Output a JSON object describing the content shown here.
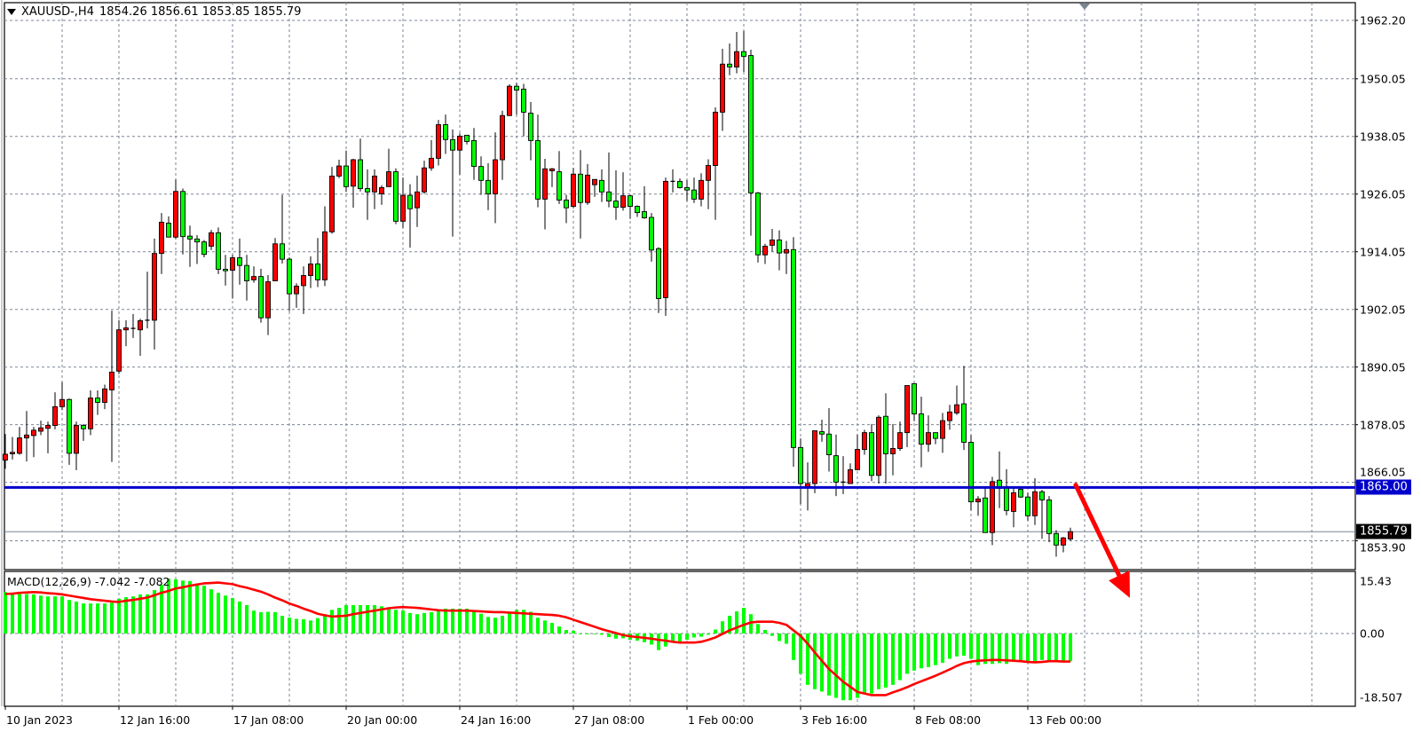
{
  "header": {
    "symbol": "XAUUSD-,H4",
    "ohlc": "1854.26 1856.61 1853.85 1855.79"
  },
  "macd_label": "MACD(12,26,9) -7.042 -7.082",
  "colors": {
    "bull": "#ff0000",
    "bear": "#00ff00",
    "wick": "#000000",
    "grid": "#7b8694",
    "hline": "#0000cc",
    "histogram": "#00ff00",
    "signal": "#ff0000",
    "arrow": "#ff0000",
    "current_price": "#000000"
  },
  "chart_data": [
    {
      "type": "candlestick",
      "symbol": "XAUUSD-",
      "timeframe": "H4",
      "ylim": [
        1847.5,
        1966.8
      ],
      "grid": true,
      "y_ticks": [
        "1962.20",
        "1950.05",
        "1938.05",
        "1926.05",
        "1914.05",
        "1902.05",
        "1890.05",
        "1878.05",
        "1866.05",
        "1853.90"
      ],
      "x_ticks": [
        "10 Jan 2023",
        "12 Jan 16:00",
        "17 Jan 08:00",
        "20 Jan 00:00",
        "24 Jan 16:00",
        "27 Jan 08:00",
        "1 Feb 00:00",
        "3 Feb 16:00",
        "8 Feb 08:00",
        "13 Feb 00:00"
      ],
      "x_tick_every_bars": 16,
      "horizontal_line": {
        "price": 1865.0,
        "label": "1865.00"
      },
      "current_price": {
        "price": 1855.79,
        "label": "1855.79"
      },
      "annotation": {
        "type": "arrow",
        "direction": "down",
        "from_price": 1865.5,
        "to_price": 1842
      },
      "ohlc": [
        [
          1870.7,
          1876.1,
          1868.9,
          1871.9
        ],
        [
          1872.0,
          1875.5,
          1870.8,
          1872.3
        ],
        [
          1872.1,
          1877.6,
          1871.8,
          1875.3
        ],
        [
          1875.3,
          1880.9,
          1870.4,
          1875.9
        ],
        [
          1875.8,
          1877.6,
          1871.3,
          1876.9
        ],
        [
          1876.7,
          1878.9,
          1875.9,
          1877.4
        ],
        [
          1877.3,
          1878.7,
          1872.1,
          1877.9
        ],
        [
          1877.9,
          1884.8,
          1877.1,
          1881.8
        ],
        [
          1881.8,
          1886.9,
          1881.1,
          1883.3
        ],
        [
          1883.3,
          1883.5,
          1869.7,
          1872.1
        ],
        [
          1872.1,
          1878.7,
          1868.6,
          1877.9
        ],
        [
          1877.9,
          1878.2,
          1874.7,
          1877.2
        ],
        [
          1877.2,
          1885.2,
          1875.9,
          1883.6
        ],
        [
          1883.6,
          1885.2,
          1880.1,
          1882.7
        ],
        [
          1882.7,
          1886.4,
          1881.3,
          1885.5
        ],
        [
          1885.3,
          1901.8,
          1870.3,
          1889.0
        ],
        [
          1889.2,
          1899.8,
          1888.6,
          1897.8
        ],
        [
          1897.8,
          1899.8,
          1894.4,
          1898.2
        ],
        [
          1898.1,
          1901.1,
          1896.1,
          1898.1
        ],
        [
          1897.8,
          1900.1,
          1892.4,
          1899.7
        ],
        [
          1899.8,
          1909.9,
          1898.1,
          1899.8
        ],
        [
          1899.8,
          1916.8,
          1893.7,
          1913.7
        ],
        [
          1913.7,
          1922.1,
          1909.4,
          1920.2
        ],
        [
          1920.0,
          1921.4,
          1917.1,
          1917.1
        ],
        [
          1917.1,
          1929.1,
          1916.7,
          1926.6
        ],
        [
          1926.6,
          1927.2,
          1913.5,
          1917.2
        ],
        [
          1917.3,
          1919.5,
          1910.9,
          1916.7
        ],
        [
          1916.7,
          1917.5,
          1911.5,
          1916.1
        ],
        [
          1916.1,
          1916.5,
          1912.9,
          1913.5
        ],
        [
          1915.2,
          1918.6,
          1914.4,
          1918.0
        ],
        [
          1918.0,
          1919.1,
          1909.4,
          1910.4
        ],
        [
          1910.4,
          1913.4,
          1907.0,
          1910.1
        ],
        [
          1910.2,
          1913.4,
          1904.3,
          1912.8
        ],
        [
          1912.8,
          1916.8,
          1907.2,
          1911.2
        ],
        [
          1911.2,
          1913.4,
          1903.9,
          1908.0
        ],
        [
          1908.2,
          1911.0,
          1907.6,
          1908.9
        ],
        [
          1908.9,
          1910.5,
          1899.3,
          1900.3
        ],
        [
          1900.3,
          1909.2,
          1896.7,
          1907.8
        ],
        [
          1908.0,
          1916.9,
          1908.0,
          1915.7
        ],
        [
          1915.7,
          1925.9,
          1911.6,
          1912.5
        ],
        [
          1912.5,
          1912.9,
          1901.7,
          1905.3
        ],
        [
          1905.3,
          1907.5,
          1902.4,
          1906.9
        ],
        [
          1907.0,
          1911.0,
          1901.1,
          1909.1
        ],
        [
          1909.1,
          1913.1,
          1906.5,
          1911.5
        ],
        [
          1911.5,
          1916.9,
          1906.7,
          1908.2
        ],
        [
          1908.2,
          1923.5,
          1906.9,
          1918.2
        ],
        [
          1918.2,
          1931.7,
          1917.8,
          1929.8
        ],
        [
          1929.8,
          1933.2,
          1929.4,
          1931.9
        ],
        [
          1931.9,
          1935.1,
          1926.5,
          1927.6
        ],
        [
          1927.7,
          1933.4,
          1923.2,
          1933.2
        ],
        [
          1933.2,
          1937.6,
          1926.6,
          1927.2
        ],
        [
          1927.2,
          1931.2,
          1920.7,
          1926.5
        ],
        [
          1926.5,
          1931.2,
          1922.9,
          1929.8
        ],
        [
          1926.1,
          1927.9,
          1923.8,
          1927.4
        ],
        [
          1927.6,
          1935.5,
          1927.6,
          1930.7
        ],
        [
          1930.7,
          1931.4,
          1919.8,
          1920.4
        ],
        [
          1920.4,
          1929.5,
          1919.0,
          1925.8
        ],
        [
          1925.8,
          1928.1,
          1914.9,
          1923.0
        ],
        [
          1923.2,
          1929.9,
          1919.2,
          1926.5
        ],
        [
          1926.5,
          1933.0,
          1926.1,
          1931.5
        ],
        [
          1931.5,
          1937.3,
          1930.9,
          1933.5
        ],
        [
          1933.5,
          1941.5,
          1932.0,
          1940.5
        ],
        [
          1940.5,
          1942.6,
          1934.4,
          1937.4
        ],
        [
          1937.4,
          1939.5,
          1917.2,
          1935.2
        ],
        [
          1935.2,
          1938.7,
          1930.1,
          1938.1
        ],
        [
          1938.3,
          1938.3,
          1936.4,
          1937.0
        ],
        [
          1937.2,
          1939.8,
          1929.0,
          1931.8
        ],
        [
          1931.8,
          1933.9,
          1925.9,
          1928.9
        ],
        [
          1928.9,
          1932.5,
          1922.7,
          1926.1
        ],
        [
          1926.1,
          1938.9,
          1920.0,
          1933.2
        ],
        [
          1933.2,
          1943.4,
          1929.0,
          1942.4
        ],
        [
          1942.4,
          1948.9,
          1942.3,
          1948.5
        ],
        [
          1948.5,
          1949.2,
          1942.6,
          1947.7
        ],
        [
          1947.9,
          1949.0,
          1938.1,
          1943.1
        ],
        [
          1942.9,
          1945.2,
          1933.1,
          1937.2
        ],
        [
          1937.2,
          1942.6,
          1923.3,
          1925.0
        ],
        [
          1925.0,
          1933.4,
          1918.7,
          1931.3
        ],
        [
          1930.9,
          1931.5,
          1927.5,
          1931.3
        ],
        [
          1930.7,
          1935.0,
          1924.0,
          1924.8
        ],
        [
          1924.8,
          1925.9,
          1920.0,
          1923.2
        ],
        [
          1923.5,
          1931.5,
          1923.1,
          1930.2
        ],
        [
          1930.2,
          1935.2,
          1916.8,
          1924.3
        ],
        [
          1924.3,
          1932.3,
          1923.8,
          1930.0
        ],
        [
          1928.0,
          1929.1,
          1925.5,
          1929.1
        ],
        [
          1928.9,
          1931.2,
          1924.4,
          1926.5
        ],
        [
          1926.5,
          1934.7,
          1923.3,
          1924.6
        ],
        [
          1924.6,
          1931.0,
          1920.7,
          1923.3
        ],
        [
          1923.3,
          1930.6,
          1922.6,
          1925.7
        ],
        [
          1925.7,
          1925.9,
          1920.9,
          1923.5
        ],
        [
          1923.5,
          1923.7,
          1921.3,
          1922.2
        ],
        [
          1922.4,
          1927.7,
          1920.9,
          1921.1
        ],
        [
          1921.2,
          1922.1,
          1912.0,
          1914.4
        ],
        [
          1914.7,
          1915.0,
          1901.3,
          1904.3
        ],
        [
          1904.5,
          1929.5,
          1900.7,
          1928.7
        ],
        [
          1928.7,
          1931.2,
          1926.4,
          1928.7
        ],
        [
          1928.7,
          1929.3,
          1927.2,
          1927.4
        ],
        [
          1927.4,
          1929.0,
          1924.6,
          1926.9
        ],
        [
          1926.9,
          1929.5,
          1924.2,
          1925.0
        ],
        [
          1925.0,
          1930.4,
          1923.5,
          1928.9
        ],
        [
          1928.9,
          1933.3,
          1922.9,
          1932.0
        ],
        [
          1932.0,
          1944.1,
          1920.7,
          1943.1
        ],
        [
          1943.1,
          1956.3,
          1939.2,
          1953.1
        ],
        [
          1953.1,
          1957.4,
          1950.8,
          1952.5
        ],
        [
          1952.5,
          1959.8,
          1951.2,
          1955.7
        ],
        [
          1955.7,
          1960.0,
          1951.5,
          1954.7
        ],
        [
          1954.9,
          1956.1,
          1917.4,
          1926.3
        ],
        [
          1926.3,
          1926.5,
          1911.8,
          1913.4
        ],
        [
          1913.4,
          1915.7,
          1911.5,
          1915.2
        ],
        [
          1915.4,
          1918.8,
          1914.1,
          1916.5
        ],
        [
          1916.5,
          1918.5,
          1910.2,
          1913.8
        ],
        [
          1913.8,
          1916.3,
          1909.4,
          1914.5
        ],
        [
          1914.5,
          1917.1,
          1869.3,
          1873.3
        ],
        [
          1873.3,
          1875.2,
          1861.5,
          1865.8
        ],
        [
          1864.9,
          1870.2,
          1860.2,
          1865.8
        ],
        [
          1865.8,
          1876.8,
          1863.8,
          1876.8
        ],
        [
          1876.6,
          1879.1,
          1874.5,
          1876.1
        ],
        [
          1876.1,
          1881.5,
          1868.3,
          1871.8
        ],
        [
          1871.6,
          1876.0,
          1863.2,
          1866.1
        ],
        [
          1866.1,
          1871.5,
          1863.6,
          1866.0
        ],
        [
          1865.8,
          1870.0,
          1865.8,
          1868.7
        ],
        [
          1868.7,
          1876.0,
          1868.6,
          1872.9
        ],
        [
          1872.9,
          1877.0,
          1871.8,
          1876.4
        ],
        [
          1876.4,
          1878.2,
          1866.3,
          1867.5
        ],
        [
          1867.5,
          1880.0,
          1865.8,
          1879.6
        ],
        [
          1879.8,
          1884.6,
          1865.8,
          1872.0
        ],
        [
          1872.0,
          1878.2,
          1867.5,
          1873.1
        ],
        [
          1873.1,
          1878.7,
          1872.6,
          1876.4
        ],
        [
          1876.4,
          1886.2,
          1873.4,
          1886.2
        ],
        [
          1886.6,
          1886.6,
          1878.8,
          1880.3
        ],
        [
          1880.3,
          1883.9,
          1869.2,
          1874.0
        ],
        [
          1874.0,
          1880.0,
          1872.4,
          1876.4
        ],
        [
          1876.4,
          1876.4,
          1874.0,
          1875.2
        ],
        [
          1875.2,
          1880.5,
          1872.2,
          1878.9
        ],
        [
          1878.9,
          1882.2,
          1877.0,
          1880.7
        ],
        [
          1880.5,
          1886.2,
          1880.1,
          1882.2
        ],
        [
          1882.4,
          1890.3,
          1872.8,
          1874.4
        ],
        [
          1874.4,
          1875.9,
          1860.2,
          1862.0
        ],
        [
          1862.0,
          1863.2,
          1859.1,
          1862.6
        ],
        [
          1862.8,
          1865.0,
          1855.6,
          1855.6
        ],
        [
          1855.6,
          1867.2,
          1853.0,
          1866.2
        ],
        [
          1866.5,
          1872.5,
          1860.7,
          1864.8
        ],
        [
          1865.0,
          1868.8,
          1859.2,
          1860.2
        ],
        [
          1860.0,
          1864.8,
          1856.7,
          1863.9
        ],
        [
          1864.6,
          1865.0,
          1862.8,
          1863.0
        ],
        [
          1863.0,
          1863.9,
          1858.1,
          1859.1
        ],
        [
          1859.1,
          1866.9,
          1857.2,
          1864.1
        ],
        [
          1864.1,
          1864.5,
          1854.3,
          1862.4
        ],
        [
          1862.4,
          1863.2,
          1853.6,
          1855.4
        ],
        [
          1855.4,
          1856.1,
          1850.6,
          1853.0
        ],
        [
          1853.0,
          1854.7,
          1851.5,
          1854.5
        ],
        [
          1854.26,
          1856.61,
          1853.85,
          1855.79
        ]
      ]
    },
    {
      "type": "bar+line",
      "indicator": "MACD(12,26,9)",
      "ylim": [
        -18.507,
        15.43
      ],
      "y_ticks": [
        "15.43",
        "0.00",
        "-18.507"
      ],
      "grid": true,
      "histogram": [
        10.5,
        10.0,
        10.0,
        10.0,
        9.9,
        9.6,
        9.4,
        9.4,
        9.4,
        8.5,
        8.1,
        7.6,
        7.6,
        7.6,
        7.6,
        7.8,
        8.8,
        9.2,
        9.4,
        9.9,
        9.9,
        11.0,
        12.3,
        13.9,
        13.7,
        13.4,
        13.3,
        12.7,
        12.1,
        11.2,
        10.3,
        9.6,
        9.0,
        8.1,
        7.2,
        5.8,
        5.4,
        5.5,
        5.4,
        4.5,
        4.0,
        3.7,
        3.6,
        3.3,
        3.9,
        4.9,
        6.0,
        6.5,
        7.2,
        7.2,
        7.2,
        7.2,
        7.2,
        6.9,
        6.4,
        6.0,
        5.8,
        5.2,
        4.9,
        5.2,
        5.4,
        5.8,
        6.3,
        6.3,
        6.3,
        6.3,
        5.8,
        5.0,
        4.2,
        4.0,
        4.5,
        5.4,
        6.0,
        6.0,
        5.5,
        4.0,
        3.3,
        2.7,
        1.8,
        0.9,
        0.7,
        -0.05,
        -0.05,
        -0.1,
        -0.3,
        -0.9,
        -1.3,
        -1.2,
        -1.6,
        -1.8,
        -2.2,
        -2.8,
        -4.2,
        -3.3,
        -2.0,
        -2.1,
        -1.6,
        -1.0,
        -0.8,
        -0.3,
        1.0,
        3.1,
        4.5,
        5.6,
        6.5,
        4.9,
        2.4,
        0.9,
        -0.6,
        -1.9,
        -2.6,
        -6.7,
        -10.2,
        -13.0,
        -14.1,
        -14.7,
        -15.7,
        -16.3,
        -16.9,
        -16.9,
        -16.3,
        -15.2,
        -15.2,
        -14.1,
        -13.7,
        -13.0,
        -11.8,
        -10.2,
        -9.4,
        -8.8,
        -8.5,
        -8.0,
        -7.4,
        -6.4,
        -5.8,
        -5.6,
        -6.4,
        -8.0,
        -7.7,
        -7.7,
        -7.5,
        -7.7,
        -7.2,
        -7.0,
        -7.2,
        -7.0,
        -6.7,
        -7.0,
        -7.0,
        -7.0,
        -7.042
      ],
      "signal": [
        10.0,
        10.1,
        10.3,
        10.4,
        10.5,
        10.4,
        10.2,
        10.1,
        9.9,
        9.6,
        9.3,
        9.0,
        8.7,
        8.5,
        8.3,
        8.1,
        8.0,
        8.3,
        8.5,
        8.8,
        9.1,
        9.7,
        10.3,
        10.8,
        11.4,
        11.7,
        12.1,
        12.4,
        12.7,
        12.8,
        12.9,
        12.7,
        12.5,
        12.0,
        11.6,
        11.1,
        10.6,
        9.9,
        9.1,
        8.4,
        7.6,
        7.0,
        6.3,
        5.7,
        5.0,
        4.6,
        4.3,
        4.4,
        4.5,
        4.9,
        5.2,
        5.5,
        5.8,
        6.1,
        6.4,
        6.6,
        6.7,
        6.6,
        6.5,
        6.3,
        6.1,
        5.9,
        5.8,
        5.8,
        5.8,
        5.8,
        5.7,
        5.6,
        5.5,
        5.4,
        5.4,
        5.3,
        5.2,
        5.1,
        5.0,
        4.9,
        4.8,
        4.7,
        4.5,
        4.1,
        3.5,
        2.9,
        2.3,
        1.7,
        1.1,
        0.6,
        0.1,
        -0.4,
        -0.7,
        -0.9,
        -1.1,
        -1.3,
        -1.6,
        -1.8,
        -2.1,
        -2.3,
        -2.3,
        -2.3,
        -2.1,
        -1.6,
        -1.0,
        -0.1,
        0.8,
        1.5,
        2.2,
        2.8,
        3.0,
        3.0,
        3.0,
        2.7,
        2.2,
        0.8,
        -0.6,
        -2.6,
        -4.8,
        -6.9,
        -9.0,
        -10.6,
        -12.2,
        -13.5,
        -14.8,
        -15.2,
        -15.6,
        -15.6,
        -15.6,
        -14.9,
        -14.3,
        -13.6,
        -12.8,
        -12.1,
        -11.4,
        -10.7,
        -9.9,
        -9.1,
        -8.2,
        -7.5,
        -7.1,
        -6.9,
        -6.8,
        -6.7,
        -6.7,
        -6.8,
        -6.9,
        -7.0,
        -7.2,
        -7.3,
        -7.2,
        -7.0,
        -7.0,
        -7.1,
        -7.082
      ]
    }
  ]
}
